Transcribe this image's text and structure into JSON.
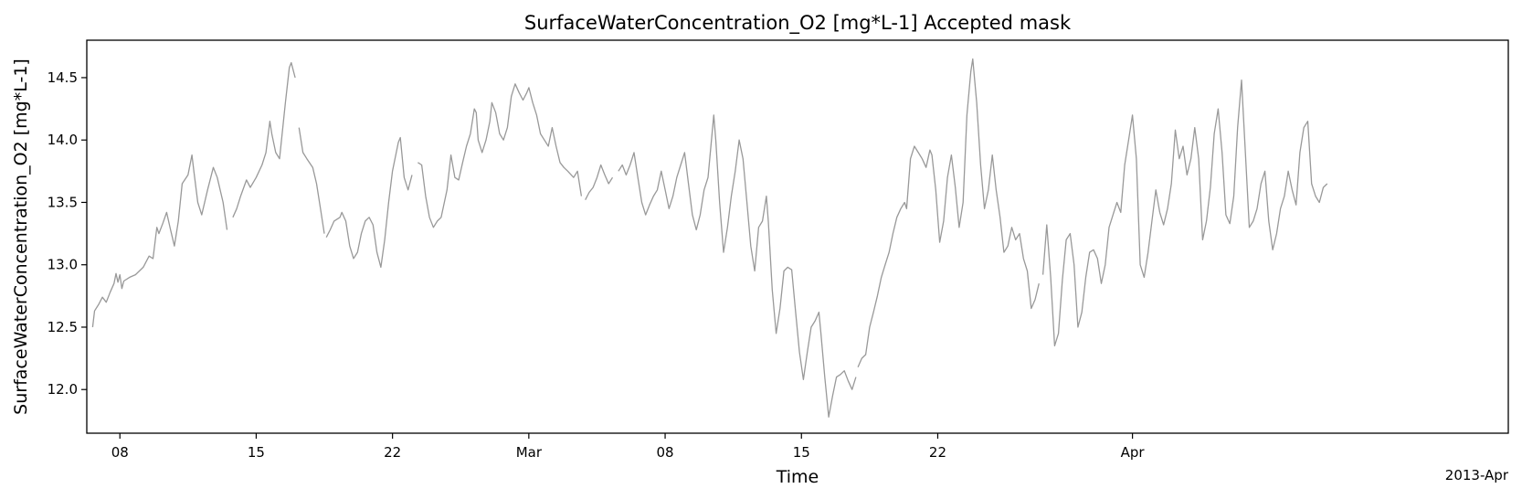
{
  "chart_data": {
    "type": "line",
    "title": "SurfaceWaterConcentration_O2 [mg*L-1] Accepted mask",
    "xlabel": "Time",
    "ylabel": "SurfaceWaterConcentration_O2 [mg*L-1]",
    "x_offset_label": "2013-Apr",
    "xlim": [
      -1.7,
      71.3
    ],
    "ylim": [
      11.65,
      14.8
    ],
    "grid": false,
    "legend": "none",
    "line_color": "#999999",
    "x_ticks": [
      {
        "value": 0,
        "label": "08"
      },
      {
        "value": 7,
        "label": "15"
      },
      {
        "value": 14,
        "label": "22"
      },
      {
        "value": 21,
        "label": "Mar"
      },
      {
        "value": 28,
        "label": "08"
      },
      {
        "value": 35,
        "label": "15"
      },
      {
        "value": 42,
        "label": "22"
      },
      {
        "value": 52,
        "label": "Apr"
      }
    ],
    "y_ticks": [
      {
        "value": 12.0,
        "label": "12.0"
      },
      {
        "value": 12.5,
        "label": "12.5"
      },
      {
        "value": 13.0,
        "label": "13.0"
      },
      {
        "value": 13.5,
        "label": "13.5"
      },
      {
        "value": 14.0,
        "label": "14.0"
      },
      {
        "value": 14.5,
        "label": "14.5"
      }
    ],
    "segments": [
      [
        [
          -1.4,
          12.5
        ],
        [
          -1.3,
          12.63
        ],
        [
          -1.1,
          12.68
        ],
        [
          -0.9,
          12.74
        ],
        [
          -0.7,
          12.7
        ],
        [
          -0.5,
          12.78
        ],
        [
          -0.3,
          12.85
        ],
        [
          -0.2,
          12.93
        ],
        [
          -0.1,
          12.86
        ],
        [
          0.0,
          12.92
        ],
        [
          0.1,
          12.81
        ],
        [
          0.2,
          12.87
        ],
        [
          0.5,
          12.9
        ],
        [
          0.8,
          12.92
        ],
        [
          1.2,
          12.98
        ],
        [
          1.5,
          13.07
        ],
        [
          1.7,
          13.05
        ],
        [
          1.9,
          13.3
        ],
        [
          2.0,
          13.25
        ],
        [
          2.2,
          13.33
        ],
        [
          2.4,
          13.42
        ],
        [
          2.6,
          13.28
        ],
        [
          2.8,
          13.15
        ],
        [
          3.0,
          13.35
        ],
        [
          3.2,
          13.65
        ],
        [
          3.5,
          13.72
        ],
        [
          3.7,
          13.88
        ],
        [
          3.8,
          13.75
        ],
        [
          4.0,
          13.5
        ],
        [
          4.2,
          13.4
        ],
        [
          4.5,
          13.6
        ],
        [
          4.8,
          13.78
        ],
        [
          5.0,
          13.7
        ],
        [
          5.3,
          13.5
        ],
        [
          5.5,
          13.28
        ]
      ],
      [
        [
          5.8,
          13.38
        ],
        [
          6.0,
          13.45
        ],
        [
          6.2,
          13.55
        ],
        [
          6.5,
          13.68
        ],
        [
          6.7,
          13.62
        ],
        [
          7.0,
          13.7
        ],
        [
          7.3,
          13.8
        ],
        [
          7.5,
          13.9
        ],
        [
          7.7,
          14.15
        ],
        [
          7.8,
          14.05
        ],
        [
          8.0,
          13.9
        ],
        [
          8.2,
          13.85
        ],
        [
          8.5,
          14.3
        ],
        [
          8.7,
          14.58
        ],
        [
          8.8,
          14.62
        ],
        [
          9.0,
          14.5
        ]
      ],
      [
        [
          9.2,
          14.1
        ],
        [
          9.4,
          13.9
        ],
        [
          9.6,
          13.85
        ],
        [
          9.9,
          13.78
        ],
        [
          10.1,
          13.65
        ],
        [
          10.3,
          13.45
        ],
        [
          10.5,
          13.25
        ]
      ],
      [
        [
          10.6,
          13.22
        ],
        [
          10.8,
          13.28
        ],
        [
          11.0,
          13.35
        ],
        [
          11.3,
          13.38
        ],
        [
          11.4,
          13.42
        ],
        [
          11.6,
          13.35
        ],
        [
          11.8,
          13.15
        ],
        [
          12.0,
          13.05
        ],
        [
          12.2,
          13.1
        ],
        [
          12.4,
          13.25
        ],
        [
          12.6,
          13.35
        ],
        [
          12.8,
          13.38
        ],
        [
          13.0,
          13.32
        ],
        [
          13.2,
          13.1
        ],
        [
          13.4,
          12.98
        ],
        [
          13.6,
          13.2
        ],
        [
          13.8,
          13.5
        ],
        [
          14.0,
          13.75
        ],
        [
          14.3,
          13.98
        ],
        [
          14.4,
          14.02
        ],
        [
          14.6,
          13.7
        ],
        [
          14.8,
          13.6
        ],
        [
          15.0,
          13.72
        ]
      ],
      [
        [
          15.3,
          13.82
        ],
        [
          15.5,
          13.8
        ],
        [
          15.7,
          13.55
        ],
        [
          15.9,
          13.38
        ],
        [
          16.1,
          13.3
        ],
        [
          16.3,
          13.35
        ],
        [
          16.5,
          13.38
        ],
        [
          16.8,
          13.6
        ],
        [
          17.0,
          13.88
        ],
        [
          17.2,
          13.7
        ],
        [
          17.4,
          13.68
        ],
        [
          17.6,
          13.82
        ],
        [
          17.8,
          13.95
        ],
        [
          18.0,
          14.05
        ],
        [
          18.2,
          14.25
        ],
        [
          18.3,
          14.22
        ],
        [
          18.4,
          14.0
        ],
        [
          18.6,
          13.9
        ],
        [
          18.8,
          14.0
        ],
        [
          19.0,
          14.15
        ],
        [
          19.1,
          14.3
        ],
        [
          19.3,
          14.22
        ],
        [
          19.5,
          14.05
        ],
        [
          19.7,
          14.0
        ],
        [
          19.9,
          14.1
        ],
        [
          20.1,
          14.35
        ],
        [
          20.3,
          14.45
        ],
        [
          20.5,
          14.38
        ],
        [
          20.7,
          14.32
        ],
        [
          20.9,
          14.38
        ],
        [
          21.0,
          14.42
        ],
        [
          21.2,
          14.3
        ],
        [
          21.4,
          14.2
        ],
        [
          21.6,
          14.05
        ],
        [
          21.8,
          14.0
        ],
        [
          22.0,
          13.95
        ],
        [
          22.2,
          14.1
        ],
        [
          22.4,
          13.95
        ],
        [
          22.6,
          13.82
        ],
        [
          22.8,
          13.78
        ],
        [
          23.0,
          13.75
        ],
        [
          23.3,
          13.7
        ],
        [
          23.5,
          13.75
        ],
        [
          23.7,
          13.55
        ]
      ],
      [
        [
          23.9,
          13.52
        ],
        [
          24.1,
          13.58
        ],
        [
          24.3,
          13.62
        ],
        [
          24.5,
          13.7
        ],
        [
          24.7,
          13.8
        ],
        [
          24.9,
          13.72
        ],
        [
          25.1,
          13.65
        ],
        [
          25.3,
          13.7
        ]
      ],
      [
        [
          25.6,
          13.75
        ],
        [
          25.8,
          13.8
        ],
        [
          26.0,
          13.72
        ],
        [
          26.2,
          13.8
        ],
        [
          26.4,
          13.9
        ],
        [
          26.6,
          13.7
        ],
        [
          26.8,
          13.5
        ],
        [
          27.0,
          13.4
        ],
        [
          27.2,
          13.48
        ],
        [
          27.4,
          13.55
        ],
        [
          27.6,
          13.6
        ],
        [
          27.8,
          13.75
        ],
        [
          28.0,
          13.6
        ],
        [
          28.2,
          13.45
        ],
        [
          28.4,
          13.55
        ],
        [
          28.6,
          13.7
        ],
        [
          28.8,
          13.8
        ],
        [
          29.0,
          13.9
        ],
        [
          29.2,
          13.65
        ],
        [
          29.4,
          13.4
        ],
        [
          29.6,
          13.28
        ],
        [
          29.8,
          13.4
        ],
        [
          30.0,
          13.6
        ],
        [
          30.2,
          13.7
        ],
        [
          30.5,
          14.2
        ],
        [
          30.6,
          14.0
        ],
        [
          30.8,
          13.5
        ],
        [
          31.0,
          13.1
        ],
        [
          31.2,
          13.3
        ],
        [
          31.4,
          13.55
        ],
        [
          31.6,
          13.75
        ],
        [
          31.8,
          14.0
        ],
        [
          32.0,
          13.85
        ],
        [
          32.2,
          13.5
        ],
        [
          32.4,
          13.15
        ],
        [
          32.6,
          12.95
        ],
        [
          32.8,
          13.3
        ],
        [
          33.0,
          13.35
        ],
        [
          33.2,
          13.55
        ],
        [
          33.3,
          13.35
        ],
        [
          33.5,
          12.8
        ],
        [
          33.7,
          12.45
        ],
        [
          33.9,
          12.65
        ],
        [
          34.1,
          12.95
        ],
        [
          34.3,
          12.98
        ],
        [
          34.5,
          12.96
        ],
        [
          34.7,
          12.62
        ],
        [
          34.9,
          12.3
        ],
        [
          35.1,
          12.08
        ],
        [
          35.3,
          12.3
        ],
        [
          35.5,
          12.5
        ],
        [
          35.7,
          12.55
        ],
        [
          35.9,
          12.62
        ],
        [
          36.0,
          12.45
        ],
        [
          36.2,
          12.1
        ],
        [
          36.4,
          11.78
        ],
        [
          36.6,
          11.95
        ],
        [
          36.8,
          12.1
        ],
        [
          37.0,
          12.12
        ],
        [
          37.2,
          12.15
        ],
        [
          37.4,
          12.07
        ],
        [
          37.6,
          12.0
        ],
        [
          37.8,
          12.1
        ]
      ],
      [
        [
          37.9,
          12.18
        ],
        [
          38.1,
          12.25
        ],
        [
          38.3,
          12.28
        ],
        [
          38.5,
          12.5
        ],
        [
          38.7,
          12.62
        ],
        [
          38.9,
          12.75
        ],
        [
          39.1,
          12.9
        ],
        [
          39.3,
          13.0
        ],
        [
          39.5,
          13.1
        ],
        [
          39.7,
          13.25
        ],
        [
          39.9,
          13.38
        ],
        [
          40.1,
          13.45
        ],
        [
          40.3,
          13.5
        ],
        [
          40.4,
          13.45
        ],
        [
          40.6,
          13.85
        ],
        [
          40.8,
          13.95
        ],
        [
          41.0,
          13.9
        ],
        [
          41.2,
          13.85
        ],
        [
          41.4,
          13.78
        ],
        [
          41.6,
          13.92
        ],
        [
          41.7,
          13.88
        ],
        [
          41.9,
          13.6
        ],
        [
          42.1,
          13.18
        ],
        [
          42.3,
          13.35
        ],
        [
          42.5,
          13.7
        ],
        [
          42.7,
          13.88
        ],
        [
          42.9,
          13.62
        ],
        [
          43.1,
          13.3
        ],
        [
          43.3,
          13.5
        ],
        [
          43.5,
          14.2
        ],
        [
          43.7,
          14.55
        ],
        [
          43.8,
          14.65
        ],
        [
          44.0,
          14.3
        ],
        [
          44.2,
          13.8
        ],
        [
          44.4,
          13.45
        ],
        [
          44.6,
          13.6
        ],
        [
          44.8,
          13.88
        ],
        [
          45.0,
          13.6
        ],
        [
          45.2,
          13.38
        ],
        [
          45.4,
          13.1
        ],
        [
          45.6,
          13.15
        ],
        [
          45.8,
          13.3
        ],
        [
          46.0,
          13.2
        ],
        [
          46.2,
          13.25
        ],
        [
          46.4,
          13.05
        ],
        [
          46.6,
          12.95
        ],
        [
          46.8,
          12.65
        ],
        [
          47.0,
          12.72
        ],
        [
          47.2,
          12.85
        ]
      ],
      [
        [
          47.4,
          12.92
        ],
        [
          47.6,
          13.32
        ],
        [
          47.8,
          12.9
        ],
        [
          48.0,
          12.35
        ],
        [
          48.2,
          12.45
        ],
        [
          48.4,
          12.88
        ],
        [
          48.6,
          13.2
        ],
        [
          48.8,
          13.25
        ],
        [
          49.0,
          13.0
        ],
        [
          49.2,
          12.5
        ],
        [
          49.4,
          12.62
        ],
        [
          49.6,
          12.9
        ],
        [
          49.8,
          13.1
        ],
        [
          50.0,
          13.12
        ],
        [
          50.2,
          13.05
        ],
        [
          50.4,
          12.85
        ],
        [
          50.6,
          13.0
        ],
        [
          50.8,
          13.3
        ],
        [
          51.0,
          13.4
        ],
        [
          51.2,
          13.5
        ],
        [
          51.4,
          13.42
        ],
        [
          51.6,
          13.8
        ],
        [
          51.8,
          14.0
        ],
        [
          52.0,
          14.2
        ],
        [
          52.2,
          13.85
        ],
        [
          52.4,
          13.0
        ],
        [
          52.6,
          12.9
        ],
        [
          52.8,
          13.1
        ],
        [
          53.0,
          13.35
        ],
        [
          53.2,
          13.6
        ],
        [
          53.4,
          13.42
        ],
        [
          53.6,
          13.32
        ],
        [
          53.8,
          13.45
        ],
        [
          54.0,
          13.65
        ],
        [
          54.2,
          14.08
        ],
        [
          54.4,
          13.85
        ],
        [
          54.6,
          13.95
        ],
        [
          54.8,
          13.72
        ],
        [
          55.0,
          13.85
        ],
        [
          55.2,
          14.1
        ],
        [
          55.4,
          13.85
        ],
        [
          55.6,
          13.2
        ],
        [
          55.8,
          13.35
        ],
        [
          56.0,
          13.62
        ],
        [
          56.2,
          14.05
        ],
        [
          56.4,
          14.25
        ],
        [
          56.6,
          13.9
        ],
        [
          56.8,
          13.4
        ],
        [
          57.0,
          13.33
        ],
        [
          57.2,
          13.55
        ],
        [
          57.4,
          14.1
        ],
        [
          57.6,
          14.48
        ],
        [
          57.8,
          13.9
        ],
        [
          58.0,
          13.3
        ],
        [
          58.2,
          13.35
        ],
        [
          58.4,
          13.45
        ],
        [
          58.6,
          13.65
        ],
        [
          58.8,
          13.75
        ],
        [
          59.0,
          13.35
        ],
        [
          59.2,
          13.12
        ],
        [
          59.4,
          13.25
        ],
        [
          59.6,
          13.45
        ],
        [
          59.8,
          13.55
        ],
        [
          60.0,
          13.75
        ],
        [
          60.2,
          13.6
        ],
        [
          60.4,
          13.48
        ],
        [
          60.6,
          13.9
        ],
        [
          60.8,
          14.1
        ],
        [
          61.0,
          14.15
        ],
        [
          61.2,
          13.65
        ],
        [
          61.4,
          13.55
        ],
        [
          61.6,
          13.5
        ],
        [
          61.8,
          13.62
        ],
        [
          62.0,
          13.65
        ]
      ]
    ]
  }
}
